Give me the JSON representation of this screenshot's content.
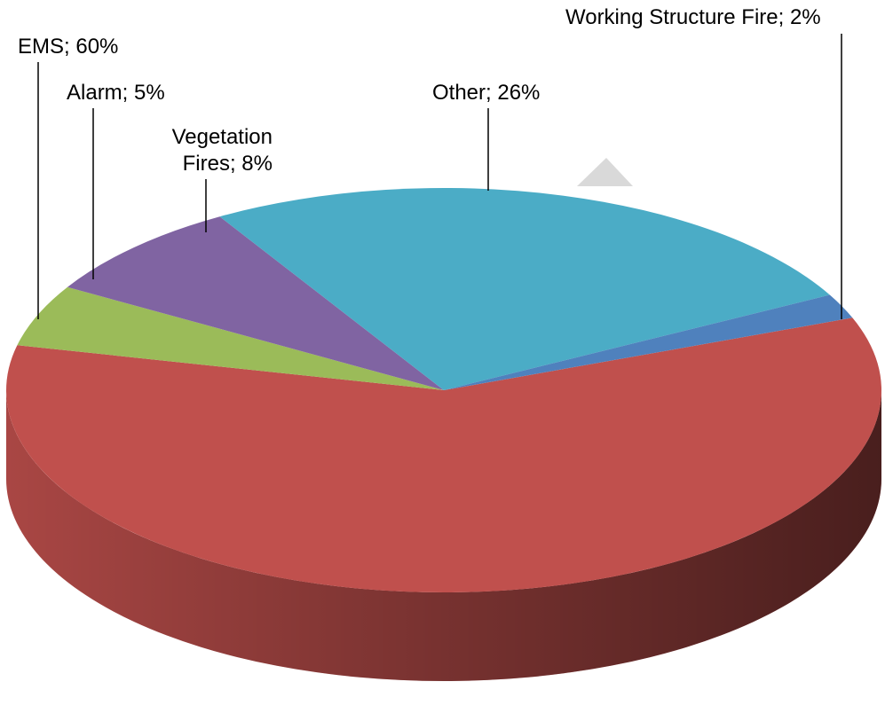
{
  "chart_data": {
    "type": "pie",
    "values": [
      60,
      5,
      8,
      26,
      2
    ],
    "value_labels": [
      "EMS; 60%",
      "Alarm; 5%",
      "Vegetation Fires; 8%",
      "Other; 26%",
      "Working Structure Fire; 2%"
    ],
    "colors": [
      "#c0504d",
      "#9bbb59",
      "#8064a2",
      "#4bacc6",
      "#4f81bd"
    ]
  }
}
